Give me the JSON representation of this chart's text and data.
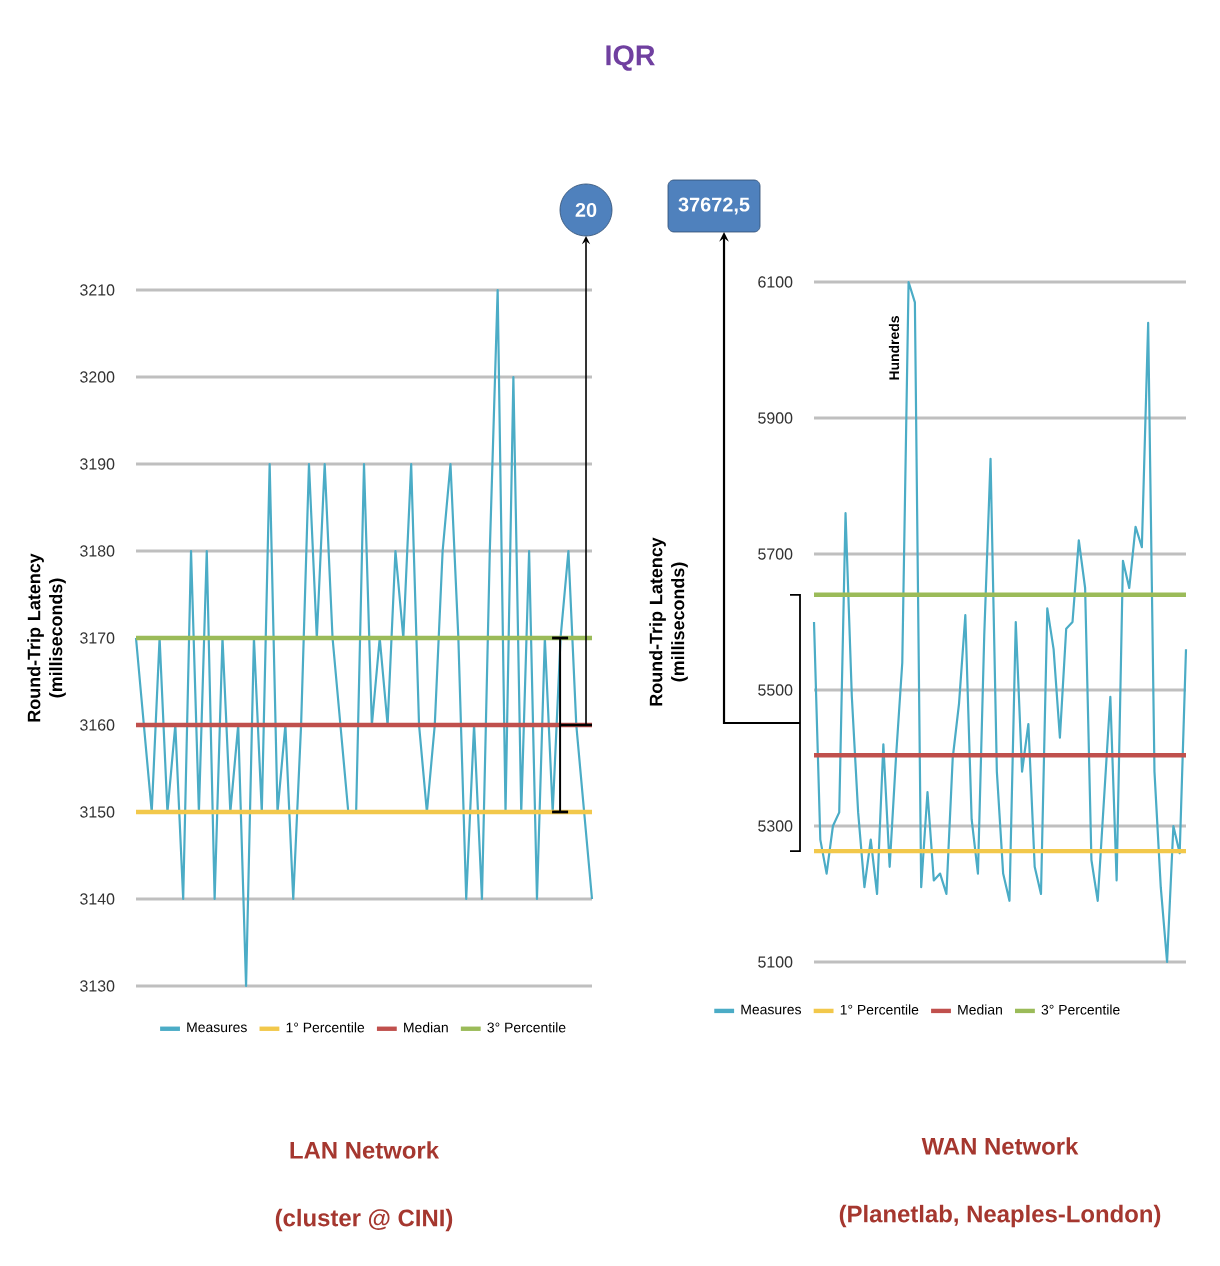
{
  "chart_data": [
    {
      "type": "line",
      "title": "LAN Network",
      "subtitle": "(cluster @ CINI)",
      "ylabel": "Round-Trip Latency (milliseconds)",
      "categories": [
        null,
        null,
        null,
        null,
        null,
        null,
        null,
        null,
        null,
        null,
        null,
        null,
        null,
        null,
        null,
        null,
        null,
        null,
        null,
        null,
        null,
        null,
        null,
        null,
        null,
        null,
        null,
        null,
        null,
        null,
        null,
        null,
        null,
        null,
        null,
        null,
        null,
        null,
        null,
        null,
        null,
        null,
        null,
        null,
        null,
        null,
        null,
        null,
        null,
        null,
        null,
        null,
        null,
        null,
        null,
        null,
        null,
        null,
        null
      ],
      "series": [
        {
          "name": "Measures",
          "color": "#4bacc6",
          "values": [
            3170,
            3160,
            3150,
            3170,
            3150,
            3160,
            3140,
            3180,
            3150,
            3180,
            3140,
            3170,
            3150,
            3160,
            3130,
            3170,
            3150,
            3190,
            3150,
            3160,
            3140,
            3160,
            3190,
            3170,
            3190,
            3170,
            3160,
            3150,
            3150,
            3190,
            3160,
            3170,
            3160,
            3180,
            3170,
            3190,
            3160,
            3150,
            3160,
            3180,
            3190,
            3170,
            3140,
            3160,
            3140,
            3180,
            3210,
            3150,
            3200,
            3150,
            3180,
            3140,
            3170,
            3150,
            3170,
            3180,
            3160,
            3150,
            3140
          ]
        }
      ],
      "ref_lines": [
        {
          "axis": "y",
          "value": 3150,
          "label": "1° Percentile",
          "color": "#f2c84b"
        },
        {
          "axis": "y",
          "value": 3160,
          "label": "Median",
          "color": "#c0504d"
        },
        {
          "axis": "y",
          "value": 3170,
          "label": "3° Percentile",
          "color": "#9bbb59"
        }
      ],
      "ylim": [
        3130,
        3210
      ],
      "yticks": [
        3130,
        3140,
        3150,
        3160,
        3170,
        3180,
        3190,
        3200,
        3210
      ],
      "grid": "y",
      "legend": "bottom",
      "tick_labels": "y",
      "annotations": [
        "IQR",
        "20"
      ]
    },
    {
      "type": "line",
      "title": "WAN Network",
      "subtitle": "(Planetlab, Neaples-London)",
      "ylabel": "Round-Trip Latency (milliseconds)",
      "categories": [
        null,
        null,
        null,
        null,
        null,
        null,
        null,
        null,
        null,
        null,
        null,
        null,
        null,
        null,
        null,
        null,
        null,
        null,
        null,
        null,
        null,
        null,
        null,
        null,
        null,
        null,
        null,
        null,
        null,
        null,
        null,
        null,
        null,
        null,
        null,
        null,
        null,
        null,
        null,
        null,
        null,
        null,
        null,
        null,
        null,
        null,
        null,
        null,
        null,
        null,
        null,
        null,
        null,
        null,
        null,
        null,
        null,
        null,
        null,
        null
      ],
      "series": [
        {
          "name": "Measures",
          "color": "#4bacc6",
          "values": [
            5600,
            5280,
            5230,
            5300,
            5320,
            5760,
            5490,
            5320,
            5210,
            5280,
            5200,
            5420,
            5240,
            5400,
            5540,
            6100,
            6070,
            5210,
            5350,
            5220,
            5230,
            5200,
            5400,
            5480,
            5610,
            5310,
            5230,
            5580,
            5840,
            5380,
            5230,
            5190,
            5600,
            5380,
            5450,
            5240,
            5200,
            5620,
            5560,
            5430,
            5590,
            5600,
            5720,
            5650,
            5250,
            5190,
            5340,
            5490,
            5220,
            5690,
            5650,
            5740,
            5710,
            6040,
            5380,
            5210,
            5100,
            5300,
            5260,
            5560
          ]
        }
      ],
      "ref_lines": [
        {
          "axis": "y",
          "value": 5263,
          "label": "1° Percentile",
          "color": "#f2c84b"
        },
        {
          "axis": "y",
          "value": 5404,
          "label": "Median",
          "color": "#c0504d"
        },
        {
          "axis": "y",
          "value": 5640,
          "label": "3° Percentile",
          "color": "#9bbb59"
        }
      ],
      "ylim": [
        5100,
        6100
      ],
      "yticks": [
        5100,
        5300,
        5500,
        5700,
        5900,
        6100
      ],
      "grid": "y",
      "legend": "bottom",
      "tick_labels": "y",
      "annotations": [
        "37672,5",
        "Hundreds"
      ]
    }
  ]
}
